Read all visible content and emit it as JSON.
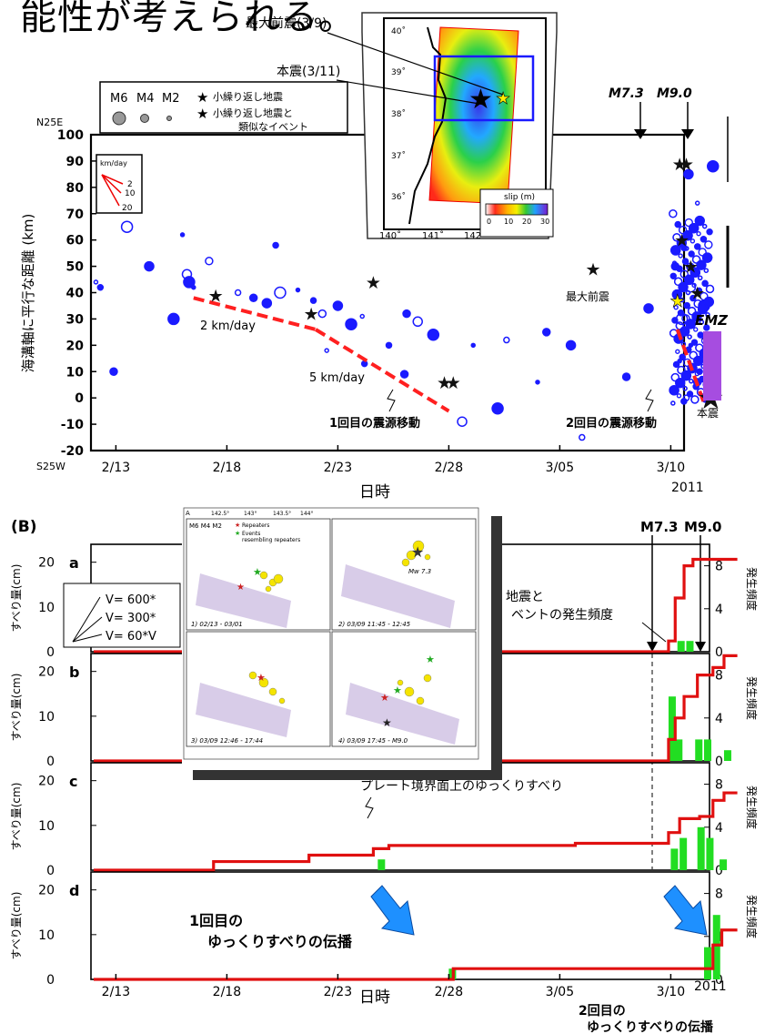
{
  "header": {
    "text": "能性が考えられる。"
  },
  "panelA": {
    "legend": {
      "m6": "M6",
      "m4": "M4",
      "m2": "M2",
      "star1": "小繰り返し地震",
      "star2a": "小繰り返し地震と",
      "star2b": "類似なイベント"
    },
    "speed_box": {
      "title": "km/day",
      "v1": "2",
      "v2": "10",
      "v3": "20"
    },
    "north": "N25E",
    "south": "S25W",
    "ylabel": "海溝軸に平行な距離 (km)",
    "xlabel": "日時",
    "year": "2011",
    "m73": "M7.3",
    "m90": "M9.0",
    "ann_2kmday": "2 km/day",
    "ann_5kmday": "5 km/day",
    "ann_first": "1回目の震源移動",
    "ann_second": "2回目の震源移動",
    "ann_foreshock": "最大前震",
    "ann_main": "本震",
    "emz": "EMZ",
    "inset": {
      "label_foreshock": "最大前震(3/9)",
      "label_main": "本震(3/11)",
      "lat_ticks": [
        "40˚",
        "39˚",
        "38˚",
        "37˚",
        "36˚"
      ],
      "lon_ticks": [
        "140˚",
        "141˚",
        "142˚"
      ],
      "cbar_title": "slip (m)",
      "cbar_ticks": [
        "0",
        "10",
        "20",
        "30"
      ]
    }
  },
  "panelB": {
    "label": "(B)",
    "m73": "M7.3",
    "m90": "M9.0",
    "sub_labels": [
      "a",
      "b",
      "c",
      "d"
    ],
    "ylabel": "すべり量(cm)",
    "y2label": "発生頻度",
    "yticks": [
      "0",
      "10",
      "20"
    ],
    "y2ticks": [
      "0",
      "4",
      "8"
    ],
    "vbox": [
      "V=  600*",
      "V=  300*",
      "V=  60*V"
    ],
    "frag_a1": "地震と",
    "frag_a2": "ベントの発生頻度",
    "ann_c": "プレート境界面上のゆっくりすべり",
    "ann_d1": "1回目の",
    "ann_d2": "ゆっくりすべりの伝播",
    "ann_d3": "2回目の",
    "ann_d4": "ゆっくりすべりの伝播",
    "xlabel": "日時",
    "year": "2011"
  },
  "chart_data": [
    {
      "type": "scatter",
      "title": "",
      "xlabel": "日時",
      "ylabel": "海溝軸に平行な距離 (km)",
      "x_ticks": [
        "2/13",
        "2/18",
        "2/23",
        "2/28",
        "3/05",
        "3/10"
      ],
      "ylim": [
        -20,
        100
      ],
      "y_ticks": [
        -20,
        -10,
        0,
        10,
        20,
        30,
        40,
        50,
        60,
        70,
        80,
        90,
        100
      ],
      "migration_fronts": [
        {
          "label": "2 km/day",
          "points": [
            [
              16.5,
              38
            ],
            [
              22.0,
              26
            ]
          ]
        },
        {
          "label": "5 km/day",
          "points": [
            [
              22.0,
              26
            ],
            [
              28.0,
              -5
            ]
          ]
        },
        {
          "points": [
            [
              38.3,
              26
            ],
            [
              39.5,
              -2
            ]
          ]
        }
      ],
      "stars": [
        [
          17.5,
          39
        ],
        [
          21.8,
          32
        ],
        [
          24.6,
          44
        ],
        [
          27.8,
          6
        ],
        [
          28.2,
          6
        ],
        [
          34.5,
          49
        ],
        [
          38.4,
          89
        ],
        [
          38.7,
          89
        ],
        [
          38.5,
          60
        ],
        [
          38.9,
          50
        ],
        [
          39.2,
          40
        ],
        [
          38.3,
          37
        ],
        [
          39.7,
          22
        ],
        [
          39.8,
          0
        ]
      ],
      "events": [
        [
          12.1,
          44
        ],
        [
          12.3,
          42
        ],
        [
          12.9,
          10
        ],
        [
          16.2,
          47
        ],
        [
          16.3,
          44
        ],
        [
          16.5,
          42
        ],
        [
          18.5,
          40
        ],
        [
          19.2,
          38
        ],
        [
          19.8,
          36
        ],
        [
          20.4,
          40
        ],
        [
          21.2,
          41
        ],
        [
          21.9,
          37
        ],
        [
          22.3,
          32
        ],
        [
          23.0,
          35
        ],
        [
          23.6,
          28
        ],
        [
          24.1,
          31
        ],
        [
          25.3,
          20
        ],
        [
          26.1,
          32
        ],
        [
          26.6,
          29
        ],
        [
          27.3,
          24
        ],
        [
          29.1,
          20
        ],
        [
          30.6,
          22
        ],
        [
          32.4,
          25
        ],
        [
          33.5,
          20
        ],
        [
          13.5,
          65
        ],
        [
          16.0,
          62
        ],
        [
          20.2,
          58
        ],
        [
          17.2,
          52
        ],
        [
          14.5,
          50
        ],
        [
          15.6,
          30
        ],
        [
          22.5,
          18
        ],
        [
          24.2,
          13
        ],
        [
          26.0,
          9
        ],
        [
          28.6,
          -9
        ],
        [
          30.2,
          -4
        ],
        [
          32.0,
          6
        ],
        [
          34.0,
          -15
        ],
        [
          36.0,
          8
        ],
        [
          37.0,
          34
        ],
        [
          38.5,
          30
        ],
        [
          38.9,
          20
        ],
        [
          39.3,
          10
        ],
        [
          38.1,
          70
        ],
        [
          38.8,
          85
        ],
        [
          39.9,
          88
        ],
        [
          39.2,
          74
        ],
        [
          38.6,
          57
        ],
        [
          38.2,
          50
        ],
        [
          38.9,
          42
        ],
        [
          39.5,
          35
        ],
        [
          38.4,
          14
        ],
        [
          38.7,
          0
        ],
        [
          39.2,
          6
        ]
      ],
      "annotations": [
        "1回目の震源移動",
        "2回目の震源移動",
        "最大前震",
        "本震",
        "EMZ",
        "M7.3",
        "M9.0"
      ]
    },
    {
      "type": "line",
      "title": "",
      "xlabel": "日時",
      "ylabel": "すべり量(cm)",
      "y2label": "発生頻度",
      "x_ticks": [
        "2/13",
        "2/18",
        "2/23",
        "2/28",
        "3/05",
        "3/10"
      ],
      "ylim": [
        0,
        24
      ],
      "y2lim": [
        0,
        10
      ],
      "panels": [
        {
          "name": "a",
          "slip": [
            [
              12,
              0
            ],
            [
              37.9,
              0
            ],
            [
              37.9,
              1
            ],
            [
              38.2,
              5
            ],
            [
              38.6,
              8
            ],
            [
              39,
              8.6
            ],
            [
              41,
              8.6
            ]
          ],
          "counts": [
            [
              38.3,
              1
            ],
            [
              38.7,
              1
            ]
          ]
        },
        {
          "name": "b",
          "slip": [
            [
              12,
              0
            ],
            [
              37.9,
              0
            ],
            [
              37.9,
              2
            ],
            [
              38.2,
              4
            ],
            [
              38.6,
              6
            ],
            [
              39.2,
              8
            ],
            [
              39.9,
              8.7
            ],
            [
              40.4,
              9.8
            ],
            [
              41,
              9.8
            ]
          ],
          "counts": [
            [
              37.9,
              6
            ],
            [
              38.2,
              2
            ],
            [
              39.1,
              2
            ],
            [
              39.5,
              2
            ],
            [
              40.4,
              1
            ]
          ]
        },
        {
          "name": "c",
          "slip": [
            [
              12,
              0
            ],
            [
              17.4,
              0.8
            ],
            [
              21.7,
              1.4
            ],
            [
              24.6,
              2.0
            ],
            [
              25.3,
              2.3
            ],
            [
              33.7,
              2.5
            ],
            [
              37.9,
              3.5
            ],
            [
              38.4,
              4.8
            ],
            [
              39.3,
              5.0
            ],
            [
              39.9,
              6.5
            ],
            [
              40.4,
              7.2
            ],
            [
              41,
              7.2
            ]
          ],
          "counts": [
            [
              24.8,
              1
            ],
            [
              38.0,
              2
            ],
            [
              38.4,
              3
            ],
            [
              39.2,
              4
            ],
            [
              39.6,
              3
            ],
            [
              40.2,
              1
            ]
          ]
        },
        {
          "name": "d",
          "slip": [
            [
              12,
              0
            ],
            [
              28.2,
              0
            ],
            [
              28.2,
              1.0
            ],
            [
              39.6,
              1.0
            ],
            [
              39.9,
              3.2
            ],
            [
              40.3,
              4.6
            ],
            [
              41,
              4.6
            ]
          ],
          "counts": [
            [
              28.0,
              1
            ],
            [
              39.5,
              3
            ],
            [
              39.9,
              6
            ]
          ]
        }
      ],
      "annotations": [
        "プレート境界面上のゆっくりすべり",
        "1回目の",
        "ゆっくりすべりの伝播",
        "2回目の",
        "ゆっくりすべりの伝播",
        "M7.3",
        "M9.0"
      ]
    }
  ]
}
